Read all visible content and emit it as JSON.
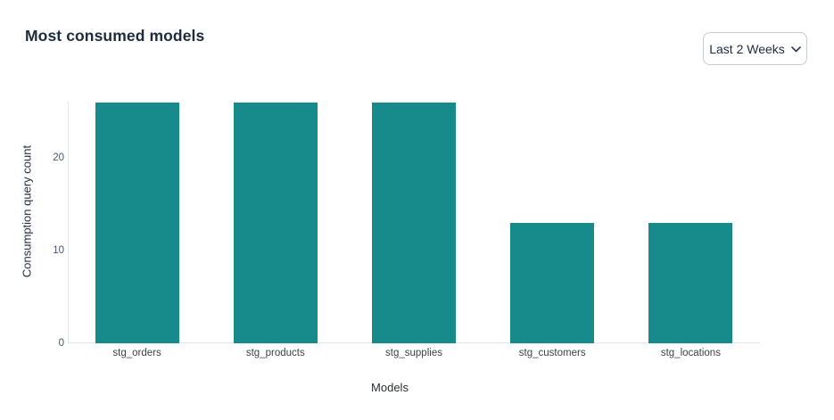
{
  "header": {
    "title": "Most consumed models"
  },
  "filter": {
    "selected_value": "Last 2 Weeks"
  },
  "chart_data": {
    "type": "bar",
    "title": "Most consumed models",
    "categories": [
      "stg_orders",
      "stg_products",
      "stg_supplies",
      "stg_customers",
      "stg_locations"
    ],
    "values": [
      26,
      26,
      26,
      13,
      13
    ],
    "xlabel": "Models",
    "ylabel": "Consumption query count",
    "ylim": [
      0,
      26
    ],
    "yticks": [
      0,
      10,
      20
    ],
    "grid": false,
    "legend": false,
    "bar_color": "#178a8b",
    "axis_line_color": "#e1e4e8"
  }
}
